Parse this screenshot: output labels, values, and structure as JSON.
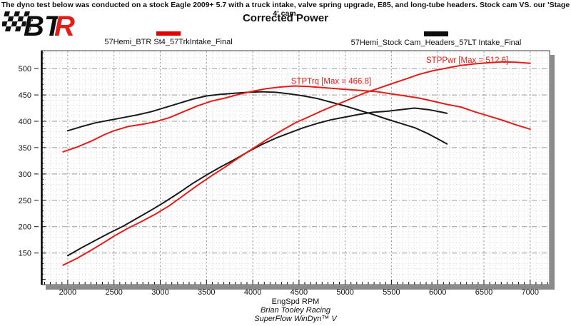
{
  "header": {
    "note": "The dyno test below was conducted on a stock Eagle 2009+ 5.7 with a truck intake, valve spring upgrade, E85, and long-tube headers. Stock cam VS. our 'Stage 4' cam."
  },
  "logo": {
    "bt": "BT",
    "r": "R"
  },
  "title": "Corrected Power",
  "legend": {
    "entries": [
      {
        "label": "57Hemi_BTR St4_57TrkIntake_Final",
        "color": "#e40000"
      },
      {
        "label": "57Hemi_Stock Cam_Headers_57LT Intake_Final",
        "color": "#0d0d0d"
      }
    ]
  },
  "footer": {
    "line1": "Brian Tooley Racing",
    "line2": "SuperFlow WinDyn™ V"
  },
  "chart_data": {
    "type": "line",
    "title": "Corrected Power",
    "xlabel": "EngSpd RPM",
    "ylabel": "",
    "x_ticks": [
      2000,
      2500,
      3000,
      3500,
      4000,
      4500,
      5000,
      5500,
      6000,
      6500,
      7000
    ],
    "y_ticks": [
      150,
      200,
      250,
      300,
      350,
      400,
      450,
      500
    ],
    "xlim": [
      1715,
      7210
    ],
    "ylim": [
      90,
      534
    ],
    "grid": "on",
    "legend_position": "top",
    "annotations": [
      {
        "text": "STPTrq [Max = 466.8]",
        "rpm": 4415,
        "value": 471,
        "color": "#e81b17"
      },
      {
        "text": "STPPwr [Max = 512.6]",
        "rpm": 5875,
        "value": 511,
        "color": "#e81b17"
      }
    ],
    "series": [
      {
        "id": "stock-torque",
        "run": "57Hemi_Stock Cam_Headers_57LT Intake_Final",
        "channel": "STPTrq",
        "color": "#1a1a1a",
        "max": 456,
        "points": [
          [
            2000,
            382
          ],
          [
            2150,
            390
          ],
          [
            2300,
            397
          ],
          [
            2450,
            402
          ],
          [
            2600,
            407
          ],
          [
            2750,
            412
          ],
          [
            2900,
            418
          ],
          [
            3050,
            426
          ],
          [
            3200,
            434
          ],
          [
            3350,
            442
          ],
          [
            3500,
            448
          ],
          [
            3650,
            451
          ],
          [
            3800,
            453
          ],
          [
            3950,
            455
          ],
          [
            4100,
            456
          ],
          [
            4250,
            455
          ],
          [
            4400,
            452
          ],
          [
            4550,
            448
          ],
          [
            4700,
            443
          ],
          [
            4850,
            436
          ],
          [
            5000,
            429
          ],
          [
            5150,
            421
          ],
          [
            5300,
            413
          ],
          [
            5450,
            404
          ],
          [
            5600,
            396
          ],
          [
            5750,
            388
          ],
          [
            5900,
            376
          ],
          [
            6050,
            362
          ],
          [
            6100,
            357
          ]
        ]
      },
      {
        "id": "stock-power",
        "run": "57Hemi_Stock Cam_Headers_57LT Intake_Final",
        "channel": "STPPwr",
        "color": "#1a1a1a",
        "max": 425,
        "points": [
          [
            2000,
            145
          ],
          [
            2150,
            160
          ],
          [
            2300,
            174
          ],
          [
            2450,
            188
          ],
          [
            2600,
            201
          ],
          [
            2750,
            216
          ],
          [
            2900,
            231
          ],
          [
            3050,
            247
          ],
          [
            3200,
            264
          ],
          [
            3350,
            282
          ],
          [
            3500,
            298
          ],
          [
            3650,
            313
          ],
          [
            3800,
            327
          ],
          [
            3950,
            342
          ],
          [
            4100,
            356
          ],
          [
            4250,
            368
          ],
          [
            4400,
            378
          ],
          [
            4550,
            388
          ],
          [
            4700,
            396
          ],
          [
            4850,
            403
          ],
          [
            5000,
            408
          ],
          [
            5150,
            413
          ],
          [
            5300,
            417
          ],
          [
            5450,
            419
          ],
          [
            5600,
            422
          ],
          [
            5750,
            425
          ],
          [
            5900,
            422
          ],
          [
            6050,
            417
          ],
          [
            6100,
            415
          ]
        ]
      },
      {
        "id": "btr-st4-torque",
        "run": "57Hemi_BTR St4_57TrkIntake_Final",
        "channel": "STPTrq",
        "color": "#e81b17",
        "max": 466.8,
        "points": [
          [
            1950,
            342
          ],
          [
            2100,
            351
          ],
          [
            2250,
            362
          ],
          [
            2400,
            375
          ],
          [
            2500,
            382
          ],
          [
            2650,
            390
          ],
          [
            2800,
            394
          ],
          [
            2950,
            399
          ],
          [
            3100,
            407
          ],
          [
            3250,
            418
          ],
          [
            3400,
            429
          ],
          [
            3550,
            438
          ],
          [
            3700,
            444
          ],
          [
            3850,
            451
          ],
          [
            4000,
            457
          ],
          [
            4150,
            462
          ],
          [
            4300,
            465
          ],
          [
            4450,
            467
          ],
          [
            4600,
            466
          ],
          [
            4750,
            464
          ],
          [
            4900,
            462
          ],
          [
            5050,
            460
          ],
          [
            5200,
            458
          ],
          [
            5350,
            456
          ],
          [
            5500,
            452
          ],
          [
            5650,
            448
          ],
          [
            5800,
            444
          ],
          [
            5950,
            438
          ],
          [
            6100,
            432
          ],
          [
            6250,
            427
          ],
          [
            6400,
            418
          ],
          [
            6550,
            410
          ],
          [
            6700,
            402
          ],
          [
            6850,
            393
          ],
          [
            7000,
            385
          ]
        ]
      },
      {
        "id": "btr-st4-power",
        "run": "57Hemi_BTR St4_57TrkIntake_Final",
        "channel": "STPPwr",
        "color": "#e81b17",
        "max": 512.6,
        "points": [
          [
            1950,
            127
          ],
          [
            2100,
            140
          ],
          [
            2250,
            155
          ],
          [
            2400,
            171
          ],
          [
            2500,
            182
          ],
          [
            2650,
            197
          ],
          [
            2800,
            210
          ],
          [
            2950,
            224
          ],
          [
            3100,
            240
          ],
          [
            3250,
            259
          ],
          [
            3400,
            278
          ],
          [
            3550,
            296
          ],
          [
            3700,
            313
          ],
          [
            3850,
            331
          ],
          [
            4000,
            348
          ],
          [
            4150,
            365
          ],
          [
            4300,
            381
          ],
          [
            4450,
            396
          ],
          [
            4600,
            408
          ],
          [
            4750,
            420
          ],
          [
            4900,
            431
          ],
          [
            5050,
            442
          ],
          [
            5200,
            453
          ],
          [
            5350,
            462
          ],
          [
            5500,
            471
          ],
          [
            5650,
            480
          ],
          [
            5800,
            489
          ],
          [
            5950,
            496
          ],
          [
            6100,
            501
          ],
          [
            6250,
            506
          ],
          [
            6400,
            509
          ],
          [
            6550,
            511
          ],
          [
            6700,
            512.6
          ],
          [
            6850,
            512
          ],
          [
            7000,
            510
          ]
        ]
      }
    ]
  }
}
